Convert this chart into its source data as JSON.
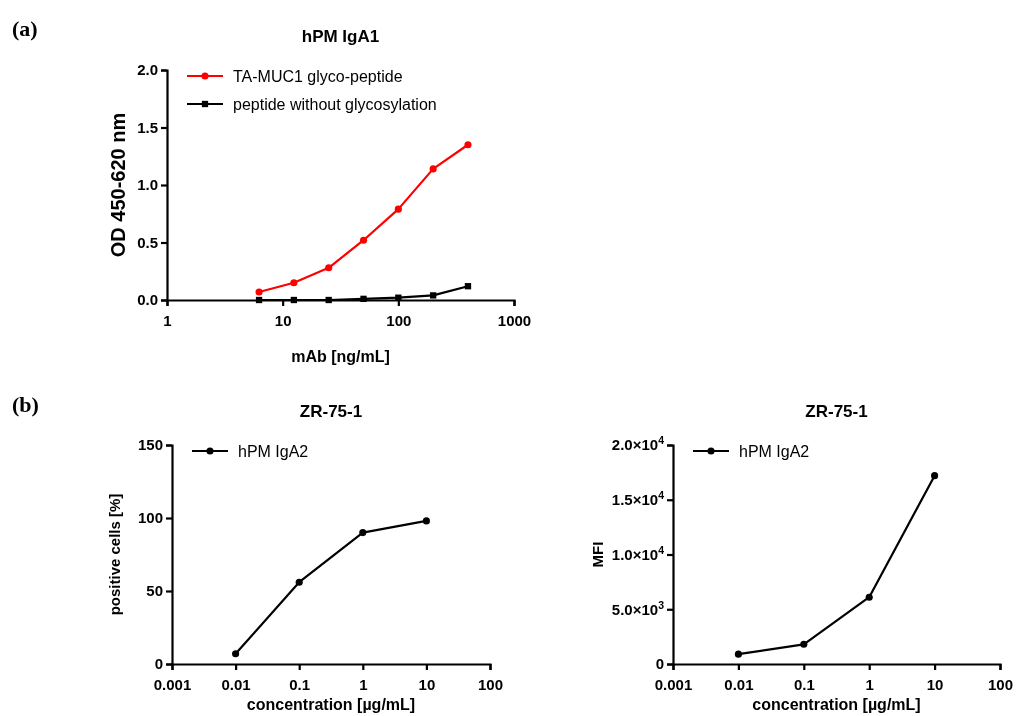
{
  "chart_data": [
    {
      "type": "line",
      "title": "hPM IgA1",
      "xlabel": "mAb [ng/mL]",
      "ylabel": "OD 450-620 nm",
      "log": "x",
      "x": [
        6.25,
        12.5,
        25,
        50,
        100,
        200,
        400
      ],
      "series": [
        {
          "name": "TA-MUC1 glyco-peptide",
          "color": "#ff0000",
          "marker": "circle",
          "values": [
            0.07,
            0.15,
            0.28,
            0.52,
            0.79,
            1.14,
            1.35
          ]
        },
        {
          "name": "peptide without glycosylation",
          "color": "#000000",
          "marker": "square",
          "values": [
            0.0,
            0.0,
            0.0,
            0.01,
            0.02,
            0.04,
            0.12
          ]
        }
      ],
      "xlim": [
        1,
        1000
      ],
      "xticks": [
        1,
        10,
        100,
        1000
      ],
      "ylim": [
        0,
        2
      ],
      "yticks": [
        {
          "value": 0,
          "label": "0.0"
        },
        0.5,
        {
          "value": 1,
          "label": "1.0"
        },
        1.5,
        {
          "value": 2,
          "label": "2.0"
        }
      ],
      "legend": "top left",
      "grid": false,
      "annotations": [
        "(a)"
      ]
    },
    {
      "type": "line",
      "title": "ZR-75-1",
      "xlabel": "concentration [µg/mL]",
      "ylabel": "positive cells [%]",
      "log": "x",
      "x": [
        0.01,
        0.1,
        1,
        10
      ],
      "series": [
        {
          "name": "hPM IgA2",
          "color": "#000000",
          "marker": "circle",
          "values": [
            7,
            56,
            90,
            98
          ]
        }
      ],
      "xlim": [
        0.001,
        100
      ],
      "xticks": [
        0.001,
        0.01,
        0.1,
        1,
        10,
        100
      ],
      "ylim": [
        0,
        150
      ],
      "yticks": [
        0,
        50,
        100,
        150
      ],
      "legend": "top left",
      "grid": false,
      "annotations": [
        "(b)"
      ]
    },
    {
      "type": "line",
      "title": "ZR-75-1",
      "xlabel": "concentration [µg/mL]",
      "ylabel": "MFI",
      "log": "x",
      "x": [
        0.01,
        0.1,
        1,
        10
      ],
      "series": [
        {
          "name": "hPM  IgA2",
          "color": "#000000",
          "marker": "circle",
          "values": [
            900,
            1800,
            6100,
            17200
          ]
        }
      ],
      "xlim": [
        0.001,
        100
      ],
      "xticks": [
        0.001,
        0.01,
        0.1,
        1,
        10,
        100
      ],
      "ylim": [
        0,
        20000
      ],
      "yticks": [
        0,
        {
          "value": 5000,
          "label": "5.0×10$^{3}$"
        },
        {
          "value": 10000,
          "label": "1.0×10$^{4}$"
        },
        {
          "value": 15000,
          "label": "1.5×10$^{4}$"
        },
        {
          "value": 20000,
          "label": "2.0×10$^{4}$"
        }
      ],
      "legend": "top left",
      "grid": false
    }
  ]
}
